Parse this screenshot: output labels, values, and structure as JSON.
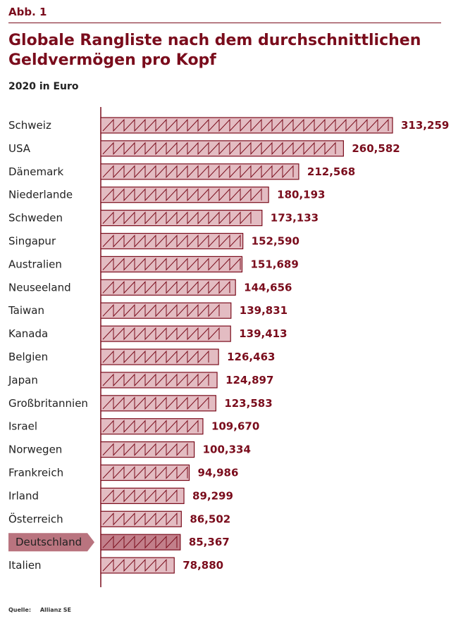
{
  "header": {
    "figure_label": "Abb. 1",
    "title": "Globale Rangliste nach dem durchschnittlichen Geldvermögen pro Kopf",
    "subtitle": "2020 in Euro"
  },
  "source": {
    "label": "Quelle:",
    "value": "Allianz SE"
  },
  "colors": {
    "accent": "#7a0c1c",
    "bar_fill": "#e3bcc2",
    "highlight_fill": "#c27f8a",
    "highlight_label_bg": "#b9747f"
  },
  "chart_data": {
    "type": "bar",
    "orientation": "horizontal",
    "title": "Globale Rangliste nach dem durchschnittlichen Geldvermögen pro Kopf",
    "subtitle": "2020 in Euro",
    "categories": [
      "Schweiz",
      "USA",
      "Dänemark",
      "Niederlande",
      "Schweden",
      "Singapur",
      "Australien",
      "Neuseeland",
      "Taiwan",
      "Kanada",
      "Belgien",
      "Japan",
      "Großbritannien",
      "Israel",
      "Norwegen",
      "Frankreich",
      "Irland",
      "Österreich",
      "Deutschland",
      "Italien"
    ],
    "values": [
      313259,
      260582,
      212568,
      180193,
      173133,
      152590,
      151689,
      144656,
      139831,
      139413,
      126463,
      124897,
      123583,
      109670,
      100334,
      94986,
      89299,
      86502,
      85367,
      78880
    ],
    "value_labels": [
      "313,259",
      "260,582",
      "212,568",
      "180,193",
      "173,133",
      "152,590",
      "151,689",
      "144,656",
      "139,831",
      "139,413",
      "126,463",
      "124,897",
      "123,583",
      "109,670",
      "100,334",
      "94,986",
      "89,299",
      "86,502",
      "85,367",
      "78,880"
    ],
    "highlight": "Deutschland",
    "xlim": [
      0,
      313259
    ],
    "grid": false,
    "legend": "none"
  }
}
